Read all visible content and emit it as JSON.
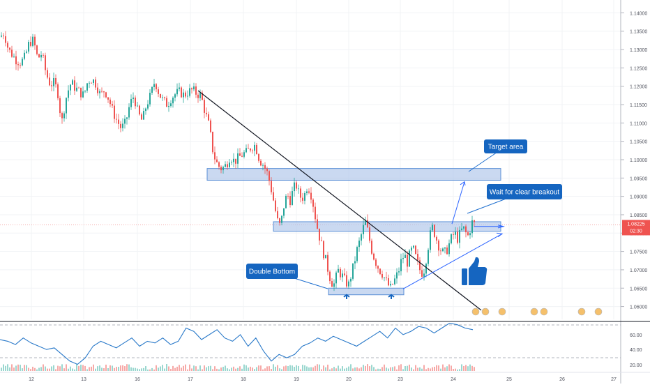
{
  "chart_data": {
    "type": "candlestick",
    "instrument_price_last": "1.08225",
    "countdown": "02:30",
    "price_axis": {
      "range": [
        1.0565,
        1.1435
      ],
      "ticks": [
        "1.14000",
        "1.13500",
        "1.13000",
        "1.12500",
        "1.12000",
        "1.11500",
        "1.11000",
        "1.10500",
        "1.10000",
        "1.09500",
        "1.09000",
        "1.08500",
        "1.08000",
        "1.07500",
        "1.07000",
        "1.06500",
        "1.06000"
      ]
    },
    "date_axis": {
      "ticks": [
        "12",
        "13",
        "16",
        "17",
        "18",
        "19",
        "20",
        "23",
        "24",
        "25",
        "26",
        "27"
      ]
    },
    "price_path": [
      [
        0,
        1.1335
      ],
      [
        6,
        1.1345
      ],
      [
        12,
        1.13
      ],
      [
        18,
        1.1285
      ],
      [
        24,
        1.127
      ],
      [
        30,
        1.1265
      ],
      [
        36,
        1.128
      ],
      [
        42,
        1.132
      ],
      [
        48,
        1.1325
      ],
      [
        54,
        1.1275
      ],
      [
        60,
        1.129
      ],
      [
        66,
        1.1235
      ],
      [
        72,
        1.1205
      ],
      [
        78,
        1.121
      ],
      [
        84,
        1.1175
      ],
      [
        88,
        1.1095
      ],
      [
        92,
        1.114
      ],
      [
        96,
        1.118
      ],
      [
        102,
        1.121
      ],
      [
        108,
        1.1195
      ],
      [
        114,
        1.1185
      ],
      [
        120,
        1.1175
      ],
      [
        126,
        1.1215
      ],
      [
        132,
        1.122
      ],
      [
        138,
        1.1205
      ],
      [
        144,
        1.1175
      ],
      [
        150,
        1.119
      ],
      [
        156,
        1.1165
      ],
      [
        162,
        1.113
      ],
      [
        168,
        1.1105
      ],
      [
        174,
        1.1085
      ],
      [
        180,
        1.11
      ],
      [
        186,
        1.115
      ],
      [
        192,
        1.1175
      ],
      [
        198,
        1.1125
      ],
      [
        204,
        1.1105
      ],
      [
        210,
        1.115
      ],
      [
        216,
        1.1175
      ],
      [
        222,
        1.1215
      ],
      [
        228,
        1.118
      ],
      [
        234,
        1.116
      ],
      [
        240,
        1.115
      ],
      [
        246,
        1.117
      ],
      [
        252,
        1.118
      ],
      [
        258,
        1.1185
      ],
      [
        264,
        1.1175
      ],
      [
        270,
        1.1185
      ],
      [
        276,
        1.119
      ],
      [
        282,
        1.118
      ],
      [
        288,
        1.1175
      ],
      [
        294,
        1.113
      ],
      [
        300,
        1.109
      ],
      [
        306,
        1.1015
      ],
      [
        312,
        1.0985
      ],
      [
        318,
        1.0975
      ],
      [
        324,
        1.0985
      ],
      [
        330,
        1.101
      ],
      [
        336,
        1.0995
      ],
      [
        342,
        1.1005
      ],
      [
        348,
        1.1015
      ],
      [
        354,
        1.102
      ],
      [
        360,
        1.1035
      ],
      [
        366,
        1.104
      ],
      [
        372,
        1.1
      ],
      [
        378,
        1.0985
      ],
      [
        384,
        1.096
      ],
      [
        390,
        1.091
      ],
      [
        396,
        1.085
      ],
      [
        400,
        1.0815
      ],
      [
        404,
        1.084
      ],
      [
        408,
        1.0885
      ],
      [
        412,
        1.0905
      ],
      [
        416,
        1.089
      ],
      [
        420,
        1.0915
      ],
      [
        424,
        1.0935
      ],
      [
        428,
        1.091
      ],
      [
        432,
        1.0895
      ],
      [
        436,
        1.09
      ],
      [
        440,
        1.0925
      ],
      [
        444,
        1.092
      ],
      [
        448,
        1.089
      ],
      [
        452,
        1.0845
      ],
      [
        456,
        1.0805
      ],
      [
        460,
        1.0775
      ],
      [
        464,
        1.0745
      ],
      [
        468,
        1.072
      ],
      [
        472,
        1.0685
      ],
      [
        476,
        1.0665
      ],
      [
        480,
        1.066
      ],
      [
        484,
        1.07
      ],
      [
        488,
        1.069
      ],
      [
        492,
        1.068
      ],
      [
        496,
        1.0665
      ],
      [
        500,
        1.066
      ],
      [
        504,
        1.069
      ],
      [
        508,
        1.072
      ],
      [
        512,
        1.0755
      ],
      [
        516,
        1.078
      ],
      [
        520,
        1.081
      ],
      [
        524,
        1.083
      ],
      [
        528,
        1.08
      ],
      [
        532,
        1.076
      ],
      [
        536,
        1.0735
      ],
      [
        540,
        1.0715
      ],
      [
        544,
        1.07
      ],
      [
        548,
        1.069
      ],
      [
        552,
        1.0675
      ],
      [
        556,
        1.066
      ],
      [
        560,
        1.065
      ],
      [
        564,
        1.0665
      ],
      [
        568,
        1.068
      ],
      [
        572,
        1.07
      ],
      [
        576,
        1.073
      ],
      [
        580,
        1.074
      ],
      [
        584,
        1.072
      ],
      [
        588,
        1.0745
      ],
      [
        592,
        1.076
      ],
      [
        596,
        1.0735
      ],
      [
        600,
        1.071
      ],
      [
        604,
        1.069
      ],
      [
        608,
        1.07
      ],
      [
        612,
        1.074
      ],
      [
        616,
        1.079
      ],
      [
        620,
        1.0815
      ],
      [
        624,
        1.0795
      ],
      [
        628,
        1.077
      ],
      [
        632,
        1.0755
      ],
      [
        636,
        1.0745
      ],
      [
        640,
        1.075
      ],
      [
        644,
        1.077
      ],
      [
        648,
        1.079
      ],
      [
        652,
        1.08
      ],
      [
        656,
        1.0785
      ],
      [
        660,
        1.08
      ],
      [
        664,
        1.0815
      ],
      [
        668,
        1.08
      ],
      [
        672,
        1.079
      ],
      [
        676,
        1.083
      ],
      [
        680,
        1.0825
      ]
    ],
    "zones": [
      {
        "name": "target",
        "price_top": 1.0976,
        "price_bottom": 1.0944
      },
      {
        "name": "breakout",
        "price_top": 1.0831,
        "price_bottom": 1.0805
      },
      {
        "name": "double-bottom",
        "price_top": 1.065,
        "price_bottom": 1.0632
      }
    ],
    "annotations": [
      "Target area",
      "Wait for clear breakout",
      "Double Bottom"
    ],
    "indicator": {
      "type": "oscillator",
      "levels": [
        "60.00",
        "40.00",
        "20.00"
      ],
      "values": [
        48,
        46,
        42,
        50,
        44,
        40,
        36,
        38,
        30,
        22,
        18,
        26,
        40,
        46,
        42,
        38,
        44,
        50,
        40,
        46,
        44,
        50,
        42,
        46,
        62,
        58,
        48,
        54,
        60,
        50,
        46,
        54,
        40,
        50,
        34,
        22,
        30,
        26,
        30,
        40,
        44,
        50,
        46,
        52,
        48,
        44,
        40,
        46,
        52,
        58,
        50,
        62,
        54,
        58,
        64,
        62,
        56,
        62,
        68,
        66,
        62,
        60
      ]
    }
  }
}
